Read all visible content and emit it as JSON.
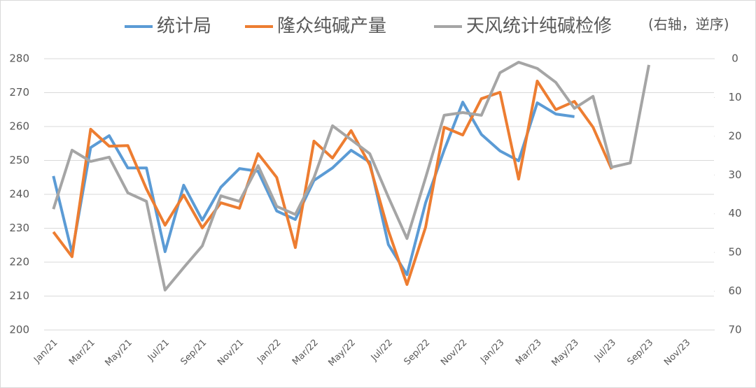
{
  "chart_data": {
    "type": "line",
    "categories": [
      "Jan/21",
      null,
      "Mar/21",
      null,
      "May/21",
      null,
      "Jul/21",
      null,
      "Sep/21",
      null,
      "Nov/21",
      null,
      "Jan/22",
      null,
      "Mar/22",
      null,
      "May/22",
      null,
      "Jul/22",
      null,
      "Sep/22",
      null,
      "Nov/22",
      null,
      "Jan/23",
      null,
      "Mar/23",
      null,
      "May/23",
      null,
      "Jul/23",
      null,
      "Sep/23",
      null,
      "Nov/23",
      null
    ],
    "series": [
      {
        "name": "统计局",
        "color": "#5b9bd5",
        "values": [
          245.4,
          222.7,
          253.8,
          257.3,
          247.8,
          247.8,
          223.1,
          242.7,
          232.4,
          242.1,
          247.6,
          246.8,
          235.1,
          232.6,
          244.1,
          247.8,
          253.0,
          249.5,
          225.2,
          216.3,
          237.5,
          253.0,
          267.2,
          257.7,
          252.8,
          249.9,
          267.0,
          263.7,
          262.9,
          null,
          null,
          null,
          null,
          null,
          null,
          null
        ]
      },
      {
        "name": "隆众纯碱产量",
        "color": "#ed7d31",
        "values": [
          228.9,
          221.6,
          259.2,
          254.2,
          254.4,
          241.6,
          230.9,
          239.8,
          230.1,
          237.5,
          235.9,
          252.0,
          245.0,
          224.3,
          255.7,
          250.7,
          258.8,
          248.7,
          229.3,
          213.4,
          230.3,
          259.8,
          257.5,
          268.2,
          270.1,
          244.5,
          273.4,
          265.0,
          267.4,
          259.8,
          247.4,
          null,
          null,
          null,
          null,
          null
        ]
      },
      {
        "name": "天风统计纯碱检修",
        "color": "#a5a5a5",
        "axis": "y2",
        "values": [
          38.8,
          23.6,
          26.5,
          25.4,
          34.6,
          36.8,
          59.7,
          53.9,
          48.3,
          35.4,
          36.8,
          27.6,
          38.1,
          40.2,
          30.7,
          17.3,
          20.9,
          24.5,
          35.7,
          46.4,
          30.7,
          14.6,
          13.9,
          14.6,
          3.6,
          0.9,
          2.5,
          6.1,
          12.8,
          9.7,
          28.0,
          26.9,
          1.6,
          null,
          null,
          null
        ]
      }
    ],
    "legend_note": "(右轴，逆序)",
    "ylim": [
      200,
      280
    ],
    "yticks": [
      200,
      210,
      220,
      230,
      240,
      250,
      260,
      270,
      280
    ],
    "y2lim": [
      0,
      70
    ],
    "y2ticks": [
      0,
      10,
      20,
      30,
      40,
      50,
      60,
      70
    ],
    "y2_reversed": true,
    "grid": true,
    "legend": "top"
  }
}
